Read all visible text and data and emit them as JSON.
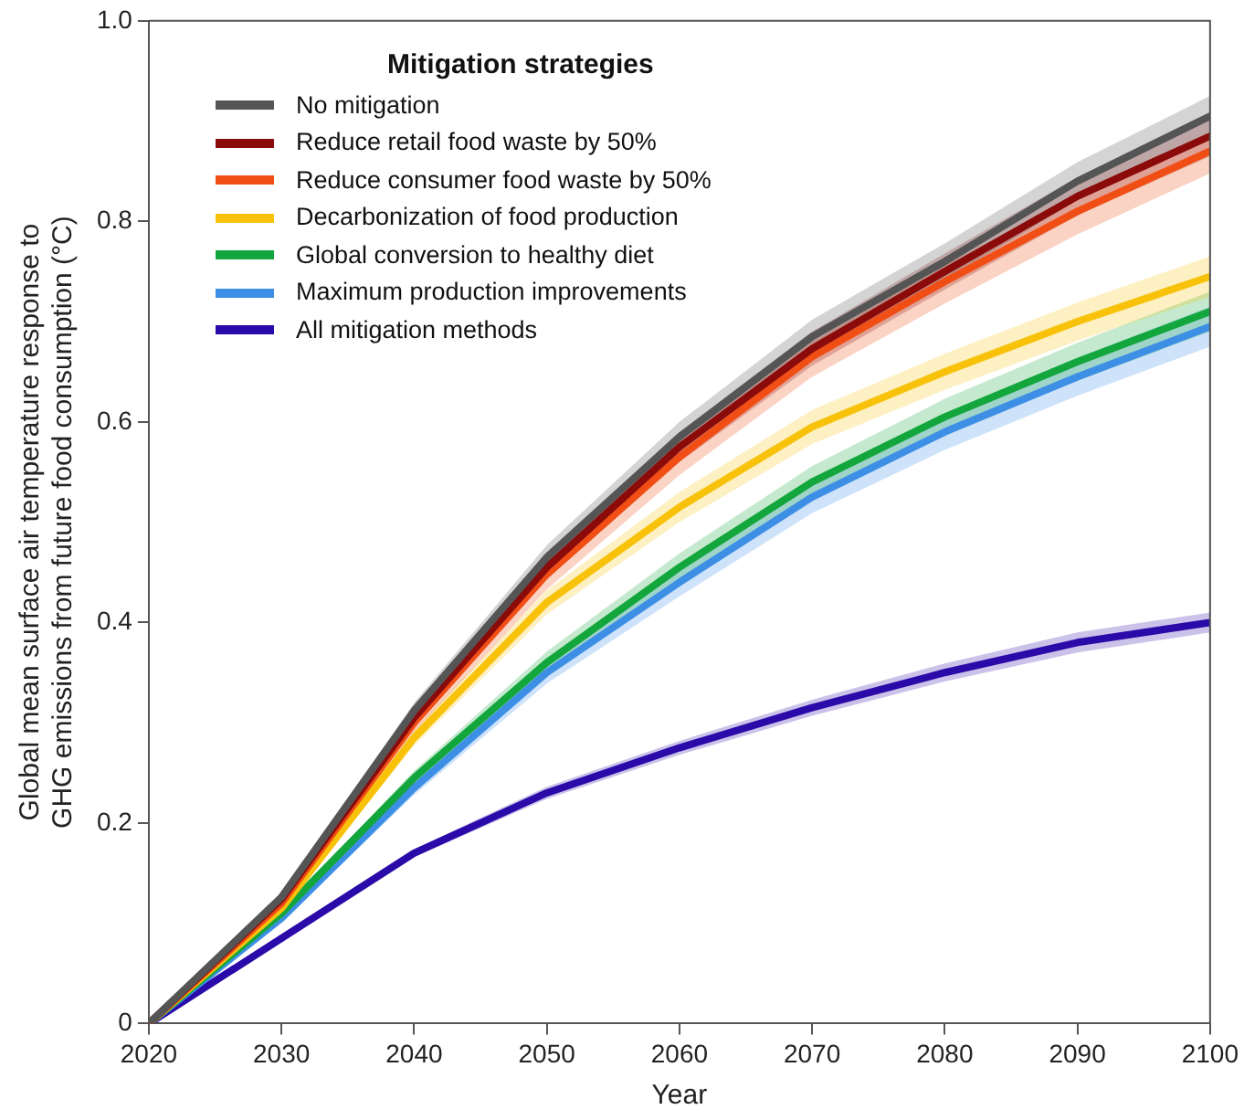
{
  "chart_data": {
    "type": "line",
    "xlabel": "Year",
    "ylabel": "Global mean surface air temperature response to GHG emissions from future food consumption (°C)",
    "legend_title": "Mitigation strategies",
    "legend": "top left",
    "grid": false,
    "marker": "none",
    "line_style": "solid",
    "x": [
      2020,
      2030,
      2040,
      2050,
      2060,
      2070,
      2080,
      2090,
      2100
    ],
    "xlim": [
      2020,
      2100
    ],
    "xticks": [
      2020,
      2030,
      2040,
      2050,
      2060,
      2070,
      2080,
      2090,
      2100
    ],
    "ylim": [
      0,
      1
    ],
    "yticks": [
      0,
      0.2,
      0.4,
      0.6,
      0.8,
      {
        "value": 1,
        "label": "1.0"
      }
    ],
    "series": [
      {
        "name": "No mitigation",
        "color": "#555555",
        "values": [
          0,
          0.126,
          0.312,
          0.465,
          0.585,
          0.685,
          0.76,
          0.84,
          0.905
        ],
        "lower": [
          0,
          0.123,
          0.304,
          0.453,
          0.57,
          0.668,
          0.742,
          0.821,
          0.885
        ],
        "upper": [
          0,
          0.129,
          0.32,
          0.477,
          0.6,
          0.702,
          0.778,
          0.859,
          0.925
        ]
      },
      {
        "name": "Reduce retail food waste by 50%",
        "color": "#8b0a0a",
        "values": [
          0,
          0.124,
          0.305,
          0.455,
          0.575,
          0.673,
          0.75,
          0.825,
          0.885
        ],
        "lower": [
          0,
          0.121,
          0.297,
          0.443,
          0.56,
          0.656,
          0.732,
          0.806,
          0.865
        ],
        "upper": [
          0,
          0.127,
          0.313,
          0.467,
          0.59,
          0.69,
          0.768,
          0.844,
          0.905
        ]
      },
      {
        "name": "Reduce consumer food waste by 50%",
        "color": "#f04e14",
        "values": [
          0,
          0.12,
          0.3,
          0.448,
          0.565,
          0.665,
          0.74,
          0.81,
          0.87
        ],
        "lower": [
          0,
          0.117,
          0.29,
          0.433,
          0.547,
          0.645,
          0.718,
          0.787,
          0.848
        ],
        "upper": [
          0,
          0.123,
          0.308,
          0.46,
          0.58,
          0.68,
          0.756,
          0.827,
          0.888
        ]
      },
      {
        "name": "Decarbonization of food production",
        "color": "#f8c20a",
        "values": [
          0,
          0.115,
          0.285,
          0.42,
          0.515,
          0.595,
          0.65,
          0.7,
          0.745
        ],
        "lower": [
          0,
          0.112,
          0.277,
          0.408,
          0.5,
          0.578,
          0.632,
          0.681,
          0.725
        ],
        "upper": [
          0,
          0.118,
          0.293,
          0.432,
          0.53,
          0.612,
          0.668,
          0.719,
          0.765
        ]
      },
      {
        "name": "Global conversion to healthy diet",
        "color": "#12a63c",
        "values": [
          0,
          0.11,
          0.245,
          0.36,
          0.455,
          0.54,
          0.605,
          0.66,
          0.71
        ],
        "lower": [
          0,
          0.107,
          0.238,
          0.349,
          0.441,
          0.524,
          0.587,
          0.641,
          0.69
        ],
        "upper": [
          0,
          0.113,
          0.252,
          0.371,
          0.469,
          0.556,
          0.623,
          0.679,
          0.73
        ]
      },
      {
        "name": "Maximum production improvements",
        "color": "#3d8fe6",
        "values": [
          0,
          0.105,
          0.235,
          0.35,
          0.44,
          0.525,
          0.59,
          0.645,
          0.695
        ],
        "lower": [
          0,
          0.102,
          0.228,
          0.339,
          0.426,
          0.509,
          0.572,
          0.626,
          0.675
        ],
        "upper": [
          0,
          0.108,
          0.242,
          0.361,
          0.454,
          0.541,
          0.608,
          0.664,
          0.715
        ]
      },
      {
        "name": "All mitigation methods",
        "color": "#2a0aa8",
        "values": [
          0,
          0.085,
          0.17,
          0.23,
          0.275,
          0.315,
          0.35,
          0.38,
          0.4
        ],
        "lower": [
          0,
          0.083,
          0.166,
          0.224,
          0.268,
          0.307,
          0.341,
          0.37,
          0.39
        ],
        "upper": [
          0,
          0.087,
          0.174,
          0.236,
          0.282,
          0.323,
          0.359,
          0.39,
          0.41
        ]
      }
    ]
  }
}
